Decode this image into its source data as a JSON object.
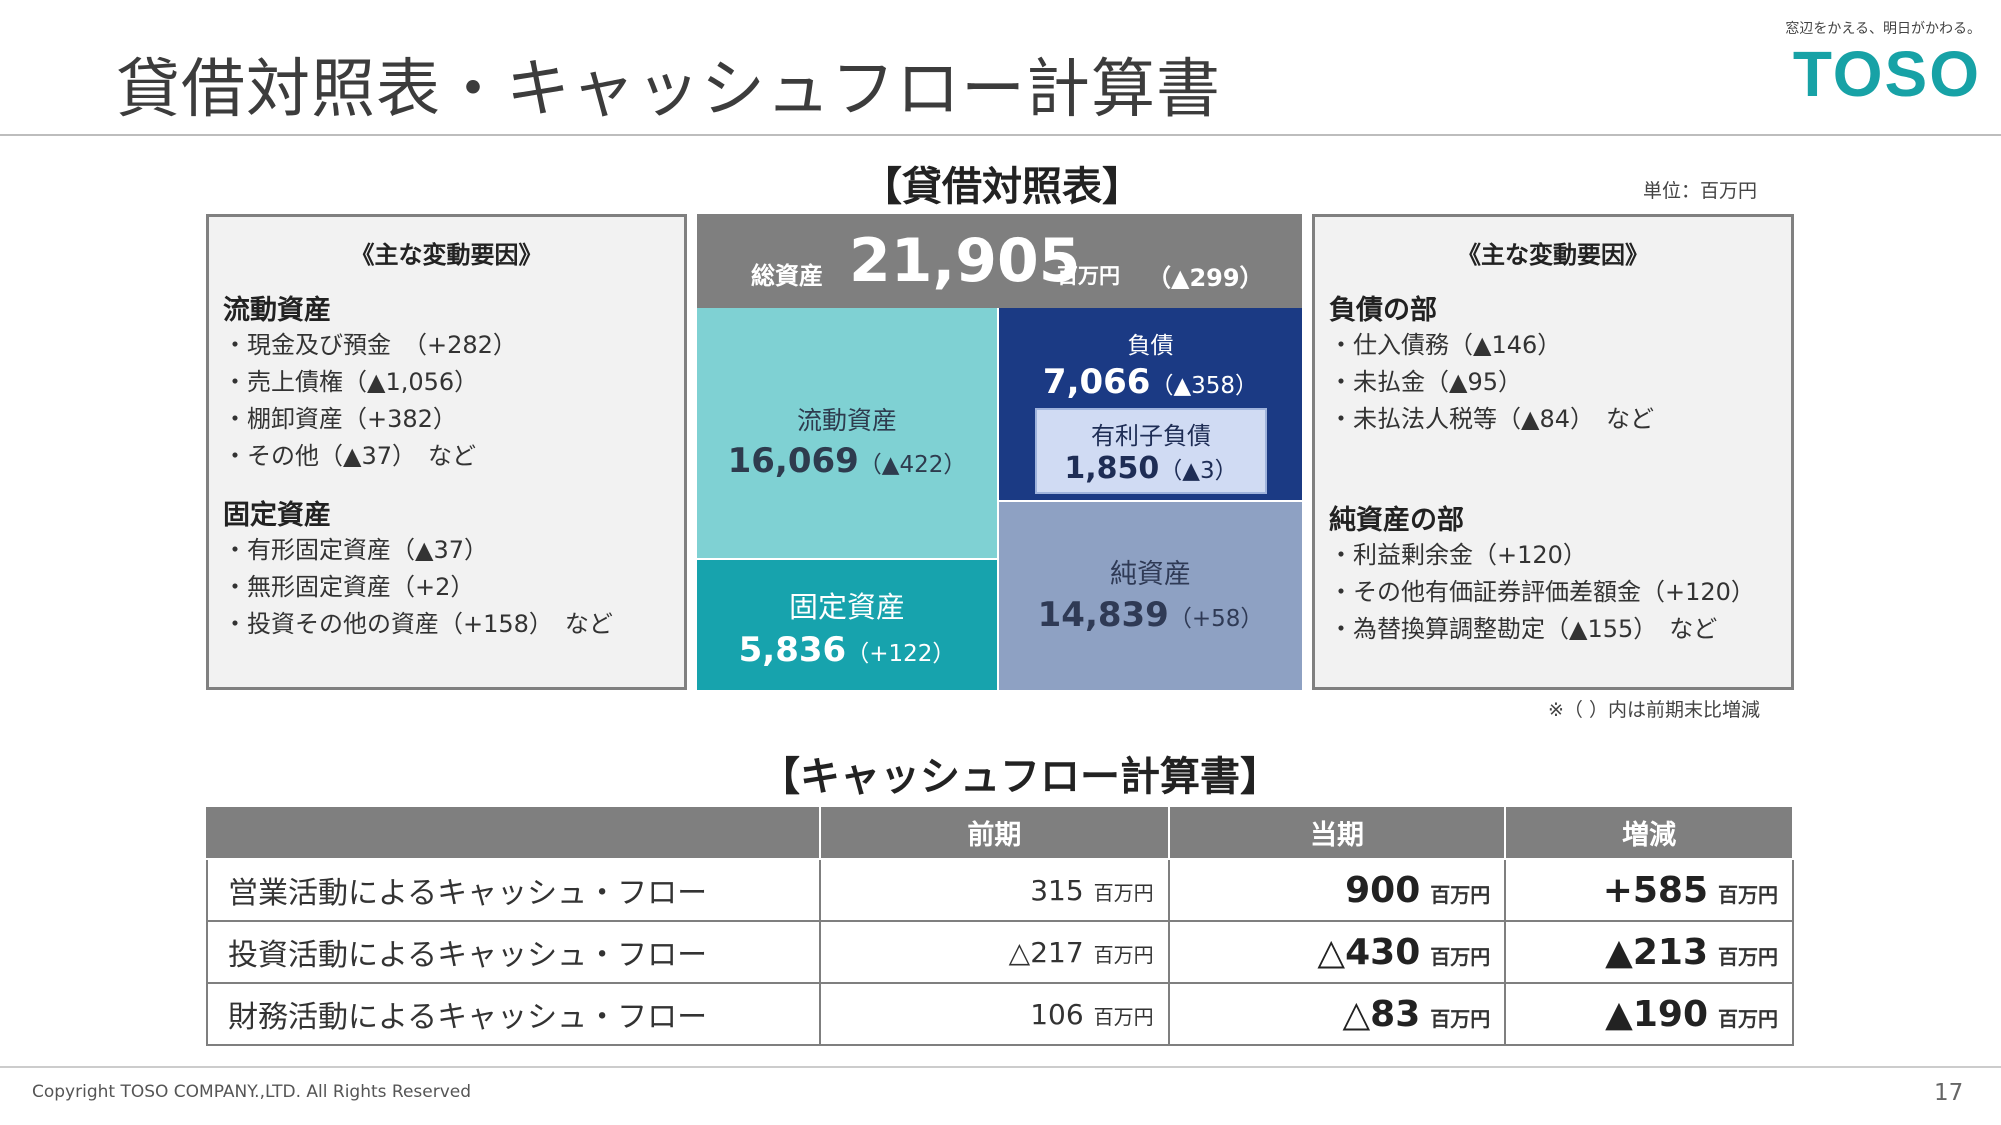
{
  "page": {
    "title": "貸借対照表・キャッシュフロー計算書",
    "logo_tagline": "窓辺をかえる、明日がかわる。",
    "logo_text": "TOSO",
    "page_number": "17",
    "copyright": "Copyright TOSO COMPANY.,LTD. All Rights Reserved"
  },
  "balance_sheet": {
    "section_title": "【貸借対照表】",
    "unit": "単位：百万円",
    "total_assets_label": "総資産",
    "total_assets_value": "21,905",
    "total_assets_unit": "百万円",
    "total_assets_change": "（▲299）",
    "current_assets": {
      "label": "流動資産",
      "value": "16,069",
      "change": "（▲422）"
    },
    "fixed_assets": {
      "label": "固定資産",
      "value": "5,836",
      "change": "（+122）"
    },
    "liabilities": {
      "label": "負債",
      "value": "7,066",
      "change": "（▲358）"
    },
    "interest_bearing_debt": {
      "label": "有利子負債",
      "value": "1,850",
      "change": "（▲3）"
    },
    "net_assets": {
      "label": "純資産",
      "value": "14,839",
      "change": "（+58）"
    },
    "note": "※（ ）内は前期末比増減"
  },
  "left_factors": {
    "heading": "《主な変動要因》",
    "group1_title": "流動資産",
    "group1_items": [
      "・現金及び預金　（+282）",
      "・売上債権（▲1,056）",
      "・棚卸資産（+382）",
      "・その他（▲37）　など"
    ],
    "group2_title": "固定資産",
    "group2_items": [
      "・有形固定資産（▲37）",
      "・無形固定資産（+2）",
      "・投資その他の資産（+158）　など"
    ]
  },
  "right_factors": {
    "heading": "《主な変動要因》",
    "group1_title": "負債の部",
    "group1_items": [
      "・仕入債務（▲146）",
      "・未払金（▲95）",
      "・未払法人税等（▲84）　など"
    ],
    "group2_title": "純資産の部",
    "group2_items": [
      "・利益剰余金（+120）",
      "・その他有価証券評価差額金（+120）",
      "・為替換算調整勘定（▲155）　など"
    ]
  },
  "cash_flow": {
    "section_title": "【キャッシュフロー計算書】",
    "headers": [
      "",
      "前期",
      "当期",
      "増減"
    ],
    "unit": "百万円",
    "rows": [
      {
        "label": "営業活動によるキャッシュ・フロー",
        "prev": "315",
        "curr": "900",
        "diff": "+585"
      },
      {
        "label": "投資活動によるキャッシュ・フロー",
        "prev": "△217",
        "curr": "△430",
        "diff": "▲213"
      },
      {
        "label": "財務活動によるキャッシュ・フロー",
        "prev": "106",
        "curr": "△83",
        "diff": "▲190"
      }
    ]
  },
  "colors": {
    "brand": "#17a2a6",
    "header_gray": "#7f7f7f",
    "current_assets": "#7fd1d3",
    "fixed_assets": "#17a3ad",
    "liabilities": "#1b3a84",
    "net_assets": "#8ea1c3",
    "interest_debt": "#d0dbf3"
  }
}
